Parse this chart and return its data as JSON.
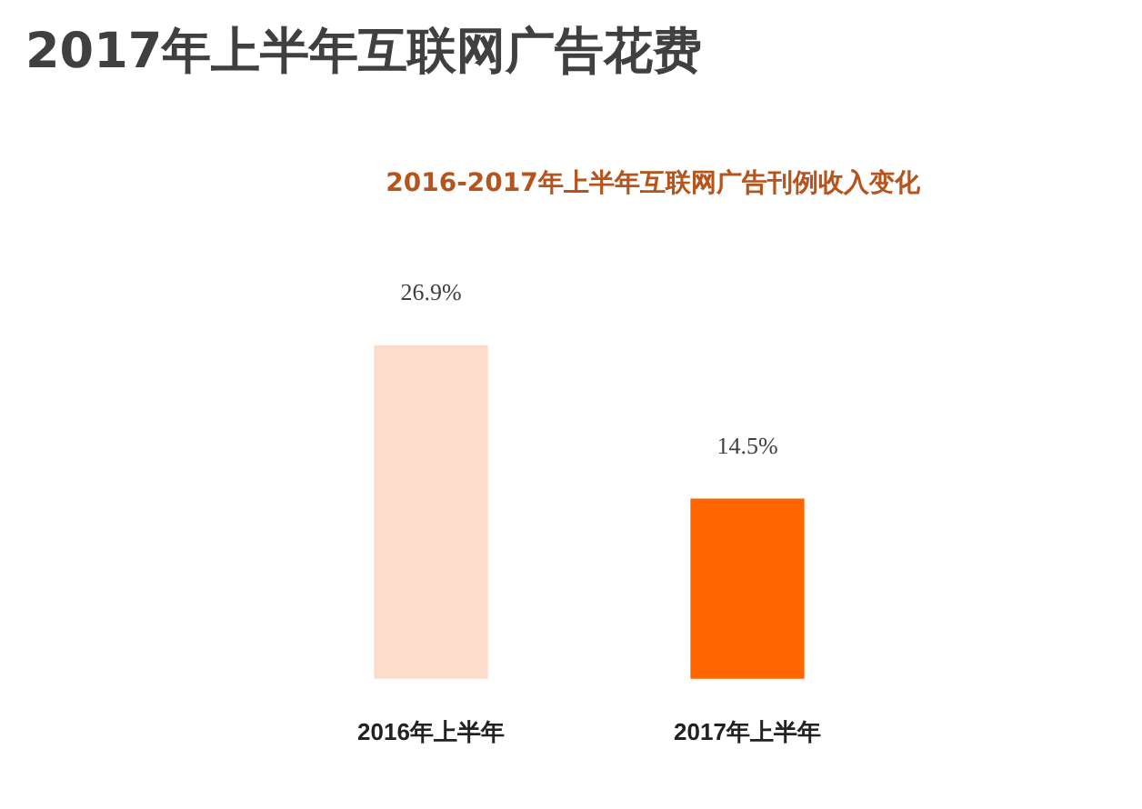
{
  "chart_data": {
    "type": "bar",
    "title": "2017年上半年互联网广告花费",
    "subtitle": "2016-2017年上半年互联网广告刊例收入变化",
    "categories": [
      "2016年上半年",
      "2017年上半年"
    ],
    "values": [
      26.9,
      14.5
    ],
    "colors": [
      "#fcdccb",
      "#ff6600"
    ],
    "value_labels": [
      "26.9%",
      "14.5%"
    ]
  }
}
